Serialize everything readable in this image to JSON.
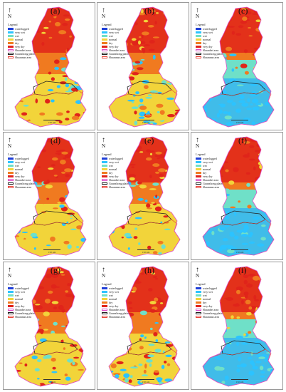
{
  "legend": {
    "title": "Legend",
    "classes": [
      {
        "label": "waterlogged",
        "color": "#1f3fd8"
      },
      {
        "label": "very wet",
        "color": "#2cc3ff"
      },
      {
        "label": "wet",
        "color": "#6fe0c8"
      },
      {
        "label": "normal",
        "color": "#f2d43a"
      },
      {
        "label": "dry",
        "color": "#f07a20"
      },
      {
        "label": "very dry",
        "color": "#e0241a"
      }
    ],
    "boundaries": [
      {
        "label": "Shaanbei area",
        "color": "#e04ac8"
      },
      {
        "label": "Guanzhong plain",
        "color": "#222222"
      },
      {
        "label": "Shaannan area",
        "color": "#e8453a"
      }
    ]
  },
  "north_label": "N",
  "scale_label": "150 km",
  "panels": [
    {
      "letter": "(a)",
      "style": "mixed"
    },
    {
      "letter": "(b)",
      "style": "mixed"
    },
    {
      "letter": "(c)",
      "style": "wet-south"
    },
    {
      "letter": "(d)",
      "style": "mixed"
    },
    {
      "letter": "(e)",
      "style": "mixed"
    },
    {
      "letter": "(f)",
      "style": "wet-south"
    },
    {
      "letter": "(g)",
      "style": "mixed"
    },
    {
      "letter": "(h)",
      "style": "mixed"
    },
    {
      "letter": "(i)",
      "style": "wet-south"
    }
  ],
  "colors": {
    "frame": "#9a9a9a",
    "background": "#ffffff"
  }
}
